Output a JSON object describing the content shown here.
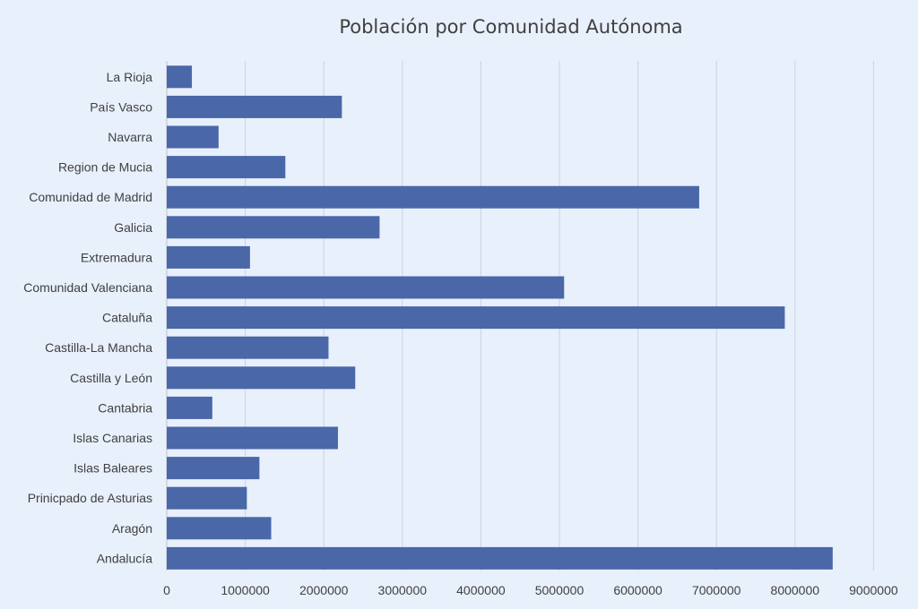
{
  "chart_data": {
    "type": "bar",
    "orientation": "horizontal",
    "title": "Población por Comunidad Autónoma",
    "xlabel": "",
    "ylabel": "",
    "categories": [
      "La Rioja",
      "País Vasco",
      "Navarra",
      "Region de Mucia",
      "Comunidad de Madrid",
      "Galicia",
      "Extremadura",
      "Comunidad Valenciana",
      "Cataluña",
      "Castilla-La Mancha",
      "Castilla y León",
      "Cantabria",
      "Islas Canarias",
      "Islas Baleares",
      "Prinicpado de Asturias",
      "Aragón",
      "Andalucía"
    ],
    "values": [
      320000,
      2230000,
      660000,
      1510000,
      6780000,
      2710000,
      1060000,
      5060000,
      7870000,
      2060000,
      2400000,
      580000,
      2180000,
      1180000,
      1020000,
      1330000,
      8480000
    ],
    "xlim": [
      0,
      9000000
    ],
    "xticks": [
      "0",
      "1000000",
      "2000000",
      "3000000",
      "4000000",
      "5000000",
      "6000000",
      "7000000",
      "8000000",
      "9000000"
    ],
    "grid": true,
    "bar_color": "#4a67a8",
    "background_color": "#e8f0fc",
    "gridline_color": "#c8d2de"
  }
}
